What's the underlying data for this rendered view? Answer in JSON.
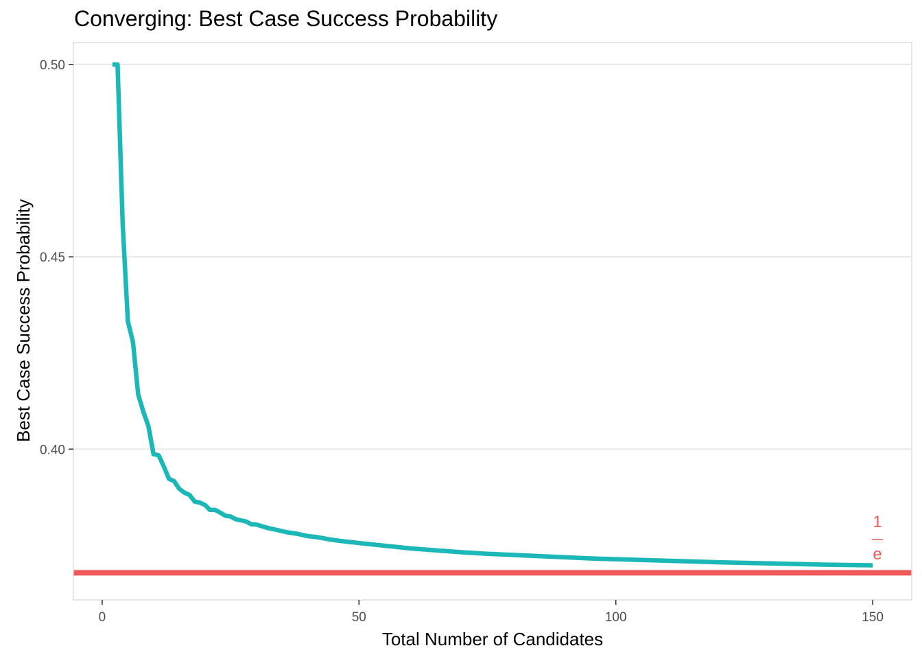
{
  "chart_data": {
    "type": "line",
    "title": "Converging: Best Case Success Probability",
    "xlabel": "Total Number of Candidates",
    "ylabel": "Best Case Success Probability",
    "xlim": [
      -5.6,
      157.6
    ],
    "ylim": [
      0.3608,
      0.5057
    ],
    "x_ticks": [
      0,
      50,
      100,
      150
    ],
    "x_tick_labels": [
      "0",
      "50",
      "100",
      "150"
    ],
    "y_ticks": [
      0.4,
      0.45,
      0.5
    ],
    "y_tick_labels": [
      "0.40",
      "0.45",
      "0.50"
    ],
    "grid": true,
    "reference_line": {
      "y": 0.367879,
      "color": "#F0595A",
      "annotation": {
        "numerator": "1",
        "denominator": "e",
        "x": 150
      }
    },
    "series": [
      {
        "color": "#1CB8B8",
        "x": [
          2,
          3,
          4,
          5,
          6,
          7,
          8,
          9,
          10,
          11,
          12,
          13,
          14,
          15,
          16,
          17,
          18,
          19,
          20,
          21,
          22,
          23,
          24,
          25,
          26,
          27,
          28,
          29,
          30,
          32,
          34,
          36,
          38,
          40,
          42,
          44,
          46,
          48,
          50,
          55,
          60,
          65,
          70,
          75,
          80,
          85,
          90,
          95,
          100,
          110,
          120,
          130,
          140,
          150
        ],
        "y": [
          0.5,
          0.5,
          0.4583,
          0.4333,
          0.4278,
          0.4143,
          0.4098,
          0.406,
          0.3987,
          0.3984,
          0.3955,
          0.3923,
          0.3917,
          0.3897,
          0.3887,
          0.3881,
          0.3864,
          0.3861,
          0.3855,
          0.3842,
          0.3842,
          0.3835,
          0.3827,
          0.3825,
          0.3818,
          0.3815,
          0.3812,
          0.3805,
          0.3804,
          0.3796,
          0.379,
          0.3784,
          0.378,
          0.3774,
          0.3771,
          0.3766,
          0.3762,
          0.3759,
          0.3756,
          0.3749,
          0.3742,
          0.3737,
          0.3732,
          0.3728,
          0.3725,
          0.3722,
          0.3719,
          0.3716,
          0.3714,
          0.371,
          0.3706,
          0.3703,
          0.37,
          0.3698
        ]
      }
    ]
  }
}
